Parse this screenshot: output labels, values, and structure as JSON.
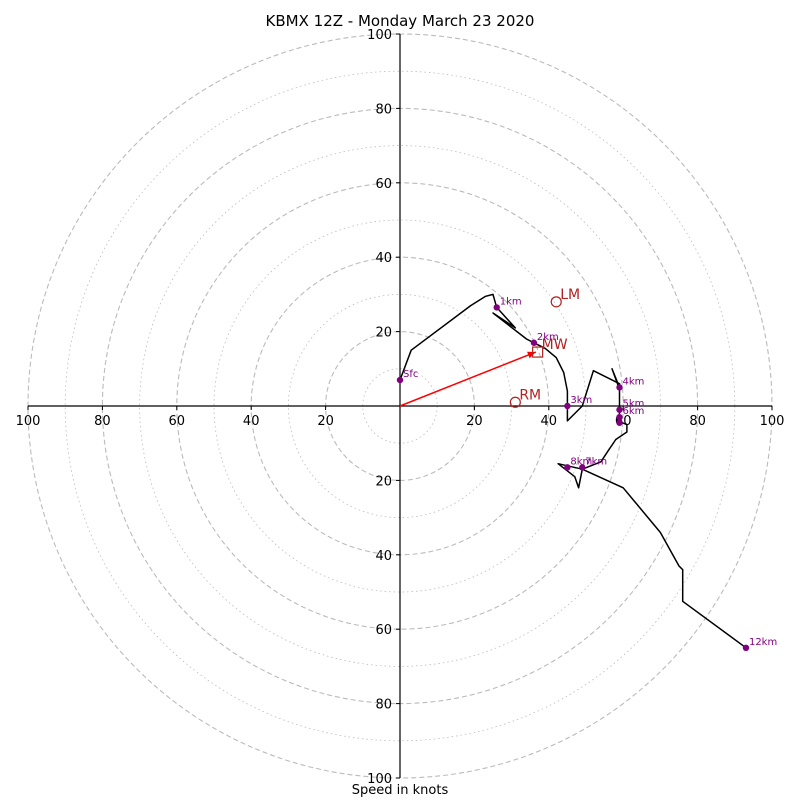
{
  "chart_data": {
    "type": "hodograph",
    "title": "KBMX 12Z - Monday March 23 2020",
    "xlabel": "Speed in knots",
    "max_speed": 100,
    "grid": true,
    "ring_labels": [
      20,
      40,
      60,
      80,
      100
    ],
    "hodograph_line": [
      [
        0,
        7
      ],
      [
        3,
        15
      ],
      [
        19,
        27
      ],
      [
        23,
        29.5
      ],
      [
        25,
        30
      ],
      [
        26,
        26.5
      ],
      [
        31,
        21
      ],
      [
        25,
        25
      ],
      [
        34,
        18
      ],
      [
        36,
        17
      ],
      [
        39,
        15.5
      ],
      [
        42,
        13
      ],
      [
        44,
        9
      ],
      [
        45,
        4
      ],
      [
        45,
        0
      ],
      [
        45,
        -4
      ],
      [
        49,
        0
      ],
      [
        52,
        9.5
      ],
      [
        59,
        6
      ],
      [
        59,
        4.5
      ],
      [
        57,
        10
      ],
      [
        59,
        5
      ],
      [
        59,
        0
      ],
      [
        59,
        -2
      ],
      [
        58.5,
        -4
      ],
      [
        61,
        -5
      ],
      [
        61,
        -7
      ],
      [
        58,
        -9
      ],
      [
        56,
        -12
      ],
      [
        54,
        -15
      ],
      [
        49,
        -17
      ],
      [
        42.5,
        -15.5
      ],
      [
        47,
        -19
      ],
      [
        48,
        -22
      ],
      [
        49,
        -17
      ],
      [
        60,
        -22
      ],
      [
        70,
        -34
      ],
      [
        75,
        -43
      ],
      [
        76,
        -44
      ],
      [
        76,
        -52.5
      ],
      [
        93,
        -65
      ]
    ],
    "height_markers": [
      {
        "label": "Sfc",
        "u": 0,
        "v": 7
      },
      {
        "label": "1km",
        "u": 26,
        "v": 26.5
      },
      {
        "label": "2km",
        "u": 36,
        "v": 17
      },
      {
        "label": "3km",
        "u": 45,
        "v": 0
      },
      {
        "label": "4km",
        "u": 59,
        "v": 5
      },
      {
        "label": "5km",
        "u": 59,
        "v": -1
      },
      {
        "label": "6km",
        "u": 59,
        "v": -3
      },
      {
        "label": "",
        "u": 59,
        "v": -4.5
      },
      {
        "label": "7km",
        "u": 49,
        "v": -16.5
      },
      {
        "label": "8km",
        "u": 45,
        "v": -16.5
      },
      {
        "label": "12km",
        "u": 93,
        "v": -65
      }
    ],
    "storm_motions": [
      {
        "label": "LM",
        "u": 42,
        "v": 28,
        "shape": "circle"
      },
      {
        "label": "RM",
        "u": 31,
        "v": 1,
        "shape": "circle"
      },
      {
        "label": "MW",
        "u": 37,
        "v": 14.5,
        "shape": "square"
      }
    ],
    "shear_vector": {
      "u": 36.5,
      "v": 14.5
    }
  },
  "colors": {
    "hodograph": "#000000",
    "markers": "#800080",
    "storm_motion": "#b22222",
    "shear_vector": "#ff0000",
    "grid": "#bbbbbb"
  }
}
